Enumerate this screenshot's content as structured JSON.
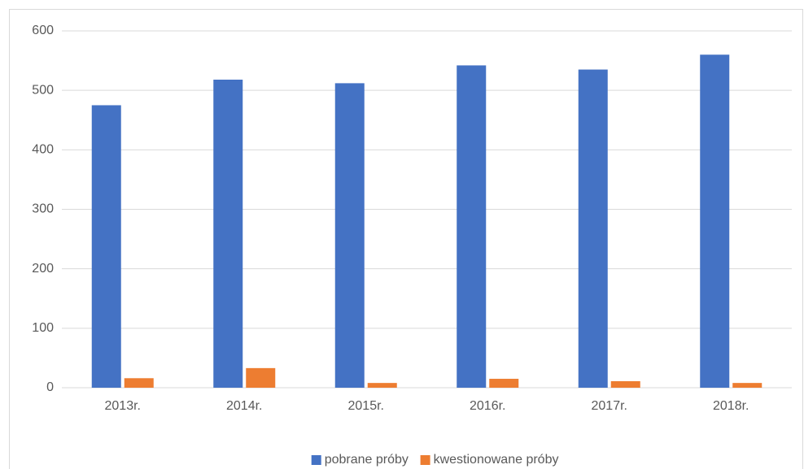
{
  "chart_data": {
    "type": "bar",
    "categories": [
      "2013r.",
      "2014r.",
      "2015r.",
      "2016r.",
      "2017r.",
      "2018r."
    ],
    "series": [
      {
        "name": "pobrane próby",
        "color": "#4472c4",
        "values": [
          475,
          518,
          512,
          542,
          535,
          560
        ]
      },
      {
        "name": "kwestionowane próby",
        "color": "#ed7d31",
        "values": [
          16,
          33,
          8,
          15,
          11,
          8
        ]
      }
    ],
    "ylim": [
      0,
      600
    ],
    "yticks": [
      0,
      100,
      200,
      300,
      400,
      500,
      600
    ],
    "grid": true,
    "legend": "bottom"
  }
}
